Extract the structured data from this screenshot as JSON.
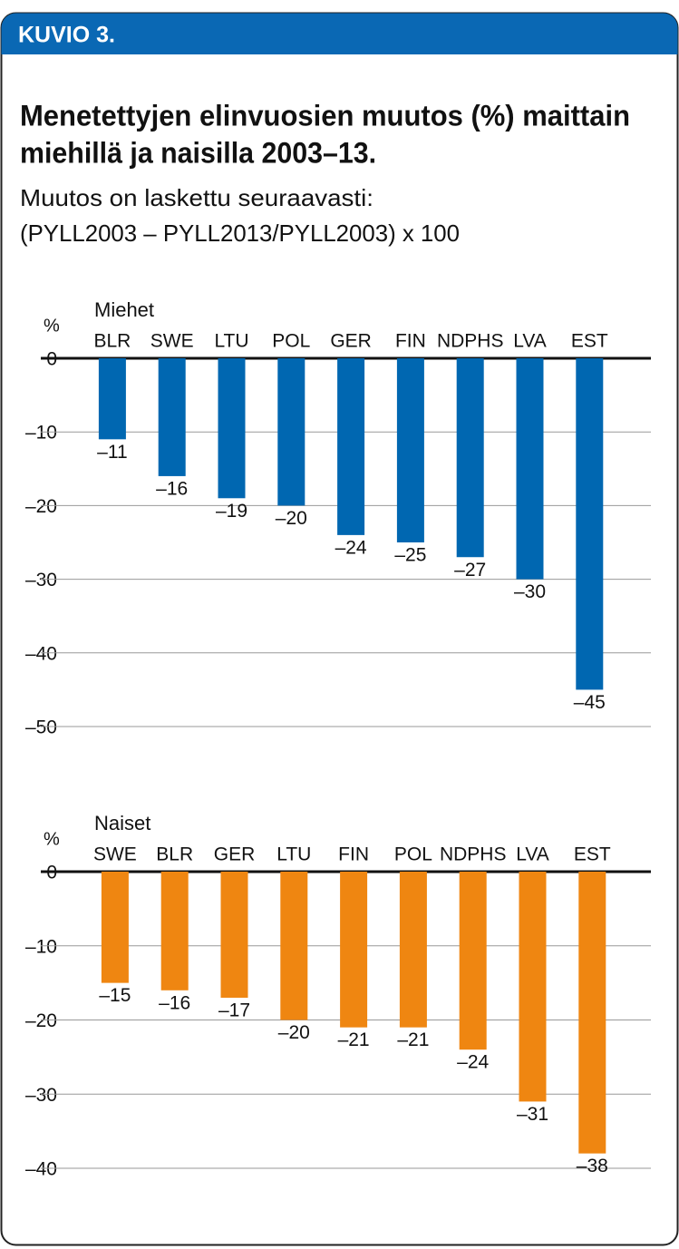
{
  "header": {
    "label": "KUVIO 3.",
    "title": [
      "Menetettyjen elinvuosien muutos (%) maittain",
      "miehillä ja naisilla 2003–13."
    ],
    "subtitle": [
      "Muutos on laskettu seuraavasti:",
      "(PYLL2003 – PYLL2013/PYLL2003) x 100"
    ]
  },
  "chart_data": [
    {
      "type": "bar",
      "ylabel": "%",
      "categories": [
        "BLR",
        "SWE",
        "LTU",
        "POL",
        "GER",
        "FIN",
        "NDPHS",
        "LVA",
        "EST"
      ],
      "series": [
        {
          "name": "Miehet",
          "color": "#0067b1",
          "values": [
            -11,
            -16,
            -19,
            -20,
            -24,
            -25,
            -27,
            -30,
            -45
          ],
          "value_labels": [
            "–11",
            "–16",
            "–19",
            "–20",
            "–24",
            "–25",
            "–27",
            "–30",
            "–45"
          ]
        }
      ],
      "ylim": [
        -50,
        0
      ],
      "yticks": [
        0,
        {
          "value": -10,
          "label": "–10"
        },
        {
          "value": -20,
          "label": "–20"
        },
        {
          "value": -30,
          "label": "–30"
        },
        {
          "value": -40,
          "label": "–40"
        },
        {
          "value": -50,
          "label": "–50"
        }
      ],
      "grid": true
    },
    {
      "type": "bar",
      "ylabel": "%",
      "categories": [
        "SWE",
        "BLR",
        "GER",
        "LTU",
        "FIN",
        "POL",
        "NDPHS",
        "LVA",
        "EST"
      ],
      "series": [
        {
          "name": "Naiset",
          "color": "#ef8611",
          "values": [
            -15,
            -16,
            -17,
            -20,
            -21,
            -21,
            -24,
            -31,
            -38
          ],
          "value_labels": [
            "–15",
            "–16",
            "–17",
            "–20",
            "–21",
            "–21",
            "–24",
            "–31",
            "–38"
          ]
        }
      ],
      "ylim": [
        -40,
        0
      ],
      "yticks": [
        0,
        {
          "value": -10,
          "label": "–10"
        },
        {
          "value": -20,
          "label": "–20"
        },
        {
          "value": -30,
          "label": "–30"
        },
        {
          "value": -40,
          "label": "–40"
        }
      ],
      "grid": true
    }
  ]
}
